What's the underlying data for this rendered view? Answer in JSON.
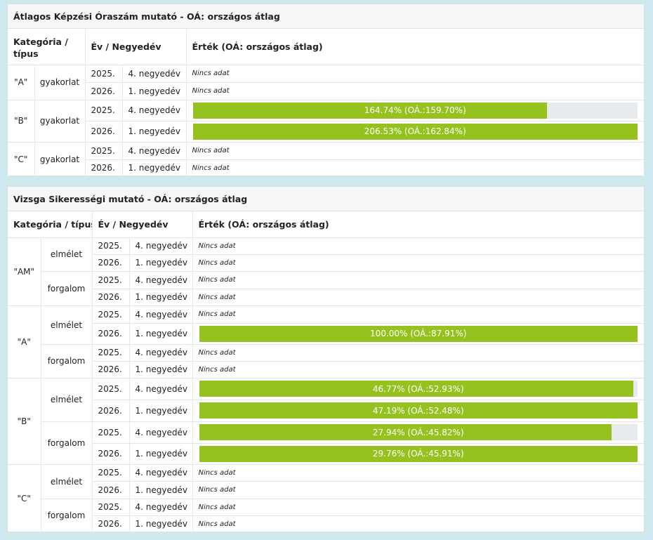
{
  "panel1": {
    "title": "Átlagos Képzési Óraszám mutató - OÁ: országos átlag",
    "headers": {
      "category": "Kategória / típus",
      "period": "Év / Negyedév",
      "value": "Érték (OÁ: országos átlag)"
    },
    "rows": [
      {
        "category": "\"A\"",
        "type": "gyakorlat",
        "year": "2025.",
        "quarter": "4. negyedév",
        "nodata": "Nincs adat"
      },
      {
        "year": "2026.",
        "quarter": "1. negyedév",
        "nodata": "Nincs adat"
      },
      {
        "category": "\"B\"",
        "type": "gyakorlat",
        "year": "2025.",
        "quarter": "4. negyedév",
        "label": "164.74% (OÁ.:159.70%)",
        "fill": 0.797
      },
      {
        "year": "2026.",
        "quarter": "1. negyedév",
        "label": "206.53% (OÁ.:162.84%)",
        "fill": 1.0
      },
      {
        "category": "\"C\"",
        "type": "gyakorlat",
        "year": "2025.",
        "quarter": "4. negyedév",
        "nodata": "Nincs adat"
      },
      {
        "year": "2026.",
        "quarter": "1. negyedév",
        "nodata": "Nincs adat"
      }
    ]
  },
  "panel2": {
    "title": "Vizsga Sikerességi mutató - OÁ: országos átlag",
    "headers": {
      "category": "Kategória / típus",
      "period": "Év / Negyedév",
      "value": "Érték (OÁ: országos átlag)"
    },
    "rows": [
      {
        "category": "\"AM\"",
        "type": "elmélet",
        "year": "2025.",
        "quarter": "4. negyedév",
        "nodata": "Nincs adat"
      },
      {
        "year": "2026.",
        "quarter": "1. negyedév",
        "nodata": "Nincs adat"
      },
      {
        "type": "forgalom",
        "year": "2025.",
        "quarter": "4. negyedév",
        "nodata": "Nincs adat"
      },
      {
        "year": "2026.",
        "quarter": "1. negyedév",
        "nodata": "Nincs adat"
      },
      {
        "category": "\"A\"",
        "type": "elmélet",
        "year": "2025.",
        "quarter": "4. negyedév",
        "nodata": "Nincs adat"
      },
      {
        "year": "2026.",
        "quarter": "1. negyedév",
        "label": "100.00% (OÁ.:87.91%)",
        "fill": 1.0
      },
      {
        "type": "forgalom",
        "year": "2025.",
        "quarter": "4. negyedév",
        "nodata": "Nincs adat"
      },
      {
        "year": "2026.",
        "quarter": "1. negyedév",
        "nodata": "Nincs adat"
      },
      {
        "category": "\"B\"",
        "type": "elmélet",
        "year": "2025.",
        "quarter": "4. negyedév",
        "label": "46.77% (OÁ.:52.93%)",
        "fill": 0.99
      },
      {
        "year": "2026.",
        "quarter": "1. negyedév",
        "label": "47.19% (OÁ.:52.48%)",
        "fill": 1.0
      },
      {
        "type": "forgalom",
        "year": "2025.",
        "quarter": "4. negyedév",
        "label": "27.94% (OÁ.:45.82%)",
        "fill": 0.94
      },
      {
        "year": "2026.",
        "quarter": "1. negyedév",
        "label": "29.76% (OÁ.:45.91%)",
        "fill": 1.0
      },
      {
        "category": "\"C\"",
        "type": "elmélet",
        "year": "2025.",
        "quarter": "4. negyedév",
        "nodata": "Nincs adat"
      },
      {
        "year": "2026.",
        "quarter": "1. negyedév",
        "nodata": "Nincs adat"
      },
      {
        "type": "forgalom",
        "year": "2025.",
        "quarter": "4. negyedév",
        "nodata": "Nincs adat"
      },
      {
        "year": "2026.",
        "quarter": "1. negyedév",
        "nodata": "Nincs adat"
      }
    ]
  },
  "colors": {
    "bar_fill": "#96c21f",
    "bar_track": "#e8ebee"
  }
}
